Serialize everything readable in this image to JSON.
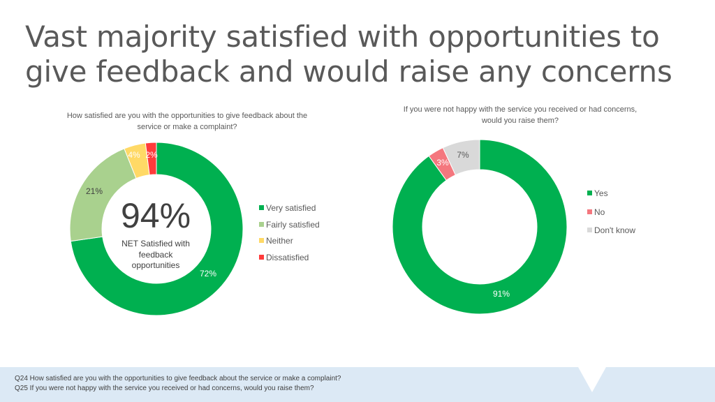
{
  "slide": {
    "title": "Vast majority satisfied with opportunities to give feedback and would raise any concerns",
    "footnotes": [
      "Q24 How satisfied are you with the opportunities to give feedback about the service or make a complaint?",
      "Q25 If you were not happy with the service you received or had concerns, would you raise them?"
    ]
  },
  "chart_data": [
    {
      "type": "pie",
      "variant": "donut",
      "title": "How satisfied are you with the opportunities to give feedback about the service or make a complaint?",
      "categories": [
        "Very satisfied",
        "Fairly satisfied",
        "Neither",
        "Dissatisfied"
      ],
      "values": [
        72,
        21,
        4,
        2
      ],
      "labels": [
        "72%",
        "21%",
        "4%",
        "2%"
      ],
      "colors": [
        "#00b050",
        "#a9d18e",
        "#ffd966",
        "#ff3b3b"
      ],
      "center_value": "94%",
      "center_label": "NET Satisfied with feedback opportunities",
      "legend_position": "right"
    },
    {
      "type": "pie",
      "variant": "donut",
      "title": "If you were not happy with the service you received or had concerns, would you raise them?",
      "categories": [
        "Yes",
        "No",
        "Don't know"
      ],
      "values": [
        91,
        3,
        7
      ],
      "labels": [
        "91%",
        "3%",
        "7%"
      ],
      "colors": [
        "#00b050",
        "#f4777e",
        "#d9d9d9"
      ],
      "legend_position": "right"
    }
  ]
}
